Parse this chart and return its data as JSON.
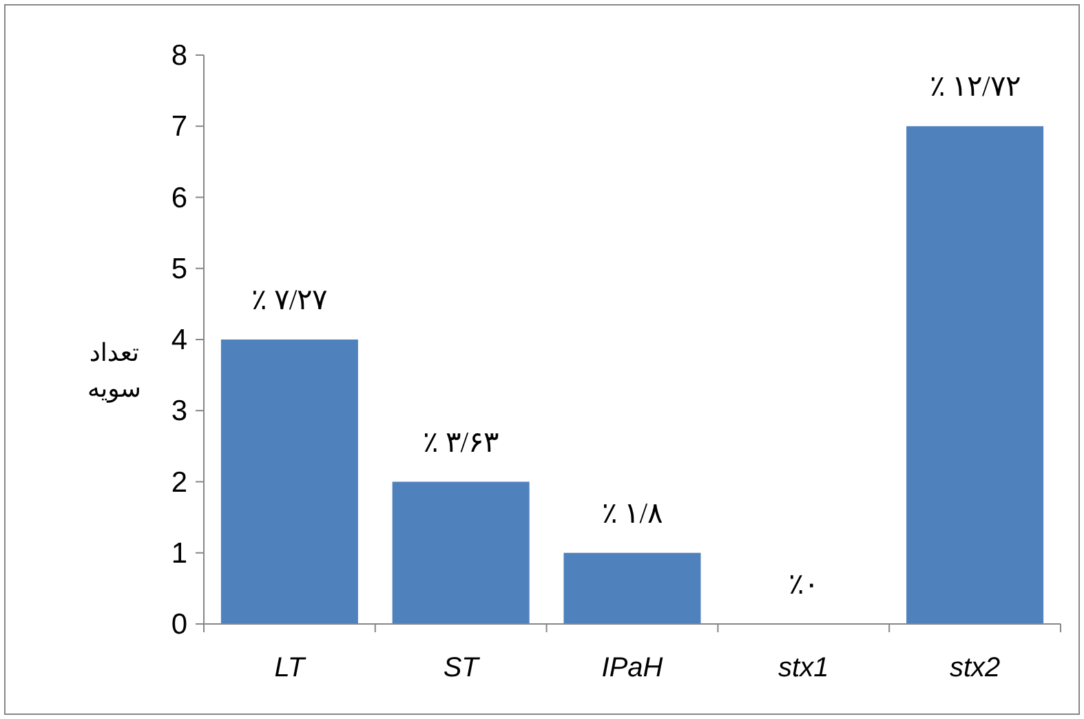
{
  "chart_data": {
    "type": "bar",
    "ylabel": "تعداد سویه",
    "categories": [
      "LT",
      "ST",
      "IPaH",
      "stx1",
      "stx2"
    ],
    "values": [
      4,
      2,
      1,
      0,
      7
    ],
    "value_labels": [
      "٪ ۷/۲۷",
      "٪ ۳/۶۳",
      "٪ ۱/۸",
      "٪۰",
      "٪ ۱۲/۷۲"
    ],
    "color": "#4f81bd",
    "ylim": [
      0,
      8
    ],
    "yticks": [
      0,
      1,
      2,
      3,
      4,
      5,
      6,
      7,
      8
    ],
    "grid": false
  }
}
